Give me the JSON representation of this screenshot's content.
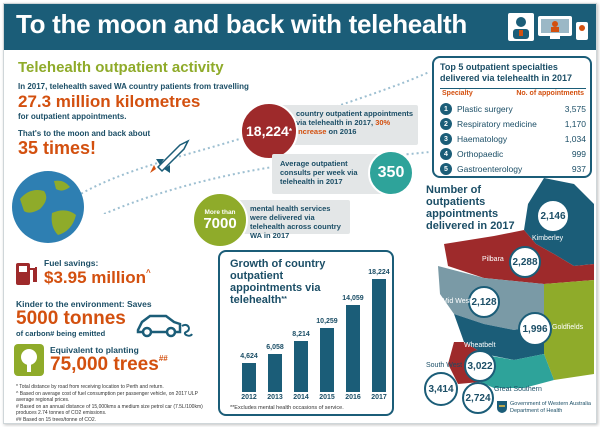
{
  "title": "To the moon and back with telehealth",
  "section_title": "Telehealth outpatient activity",
  "intro": {
    "line1": "In 2017, telehealth saved WA country patients from travelling",
    "km": "27.3 million kilometres",
    "km_note": "for outpatient appointments.",
    "moon_text": "That's to the moon and back about",
    "moon_times": "35 times!"
  },
  "stat_appointments": {
    "value": "18,224",
    "sup": "*",
    "text_a": "country outpatient appointments via telehealth in 2017,",
    "increase": "30% increase",
    "text_b": "on 2016"
  },
  "stat_weekly": {
    "text": "Average outpatient consults per week via telehealth in 2017",
    "value": "350"
  },
  "stat_mental": {
    "prefix": "More than",
    "value": "7000",
    "text": "mental health services were delivered via telehealth across country WA in 2017"
  },
  "savings": {
    "fuel_label": "Fuel savings:",
    "fuel_value": "$3.95 million",
    "fuel_sup": "^",
    "env_label": "Kinder to the environment: Saves",
    "env_value": "5000 tonnes",
    "env_note": "of carbon# being emitted",
    "trees_label": "Equivalent to planting",
    "trees_value": "75,000 trees",
    "trees_sup": "##"
  },
  "footnotes": [
    "* Total distance by road from receiving location to Perth and return.",
    "^ Based on average cost of fuel consumption per passenger vehicle, on 2017 ULP average regional prices.",
    "# Based on an annual distance of 15,000kms a medium size petrol car (7.5L/100km) produces 2.74 tonnes of CO2 emissions.",
    "## Based on 15 trees/tonne of CO2."
  ],
  "chart_data": {
    "type": "bar",
    "title": "Growth of country outpatient appointments via telehealth",
    "title_sup": "**",
    "categories": [
      "2012",
      "2013",
      "2014",
      "2015",
      "2016",
      "2017"
    ],
    "values": [
      4624,
      6058,
      8214,
      10259,
      14059,
      18224
    ],
    "value_labels": [
      "4,624",
      "6,058",
      "8,214",
      "10,259",
      "14,059",
      "18,224"
    ],
    "ylim": [
      0,
      19000
    ],
    "note": "**Excludes mental health occasions of service.",
    "color": "#1b5d78"
  },
  "specialties": {
    "title": "Top 5 outpatient specialties delivered via telehealth in 2017",
    "col1": "Specialty",
    "col2": "No. of appointments",
    "rows": [
      {
        "n": "1",
        "name": "Plastic surgery",
        "value": "3,575"
      },
      {
        "n": "2",
        "name": "Respiratory medicine",
        "value": "1,170"
      },
      {
        "n": "3",
        "name": "Haematology",
        "value": "1,034"
      },
      {
        "n": "4",
        "name": "Orthopaedic",
        "value": "999"
      },
      {
        "n": "5",
        "name": "Gastroenterology",
        "value": "937"
      }
    ]
  },
  "map": {
    "title": "Number of outpatients appointments delivered in 2017",
    "regions": [
      {
        "name": "Kimberley",
        "value": "2,146"
      },
      {
        "name": "Pilbara",
        "value": "2,288"
      },
      {
        "name": "Mid West",
        "value": "2,128"
      },
      {
        "name": "Goldfields",
        "value": "1,996"
      },
      {
        "name": "Wheatbelt",
        "value": "3,022"
      },
      {
        "name": "South West",
        "value": "3,414"
      },
      {
        "name": "Great Southern",
        "value": "2,724"
      }
    ]
  },
  "logo": {
    "line1": "Government of Western Australia",
    "line2": "Department of Health"
  },
  "colors": {
    "header": "#1b5d78",
    "accent_green": "#8fab2a",
    "accent_orange": "#d3500f",
    "accent_red": "#9e2a2b",
    "teal": "#2ea39a"
  }
}
